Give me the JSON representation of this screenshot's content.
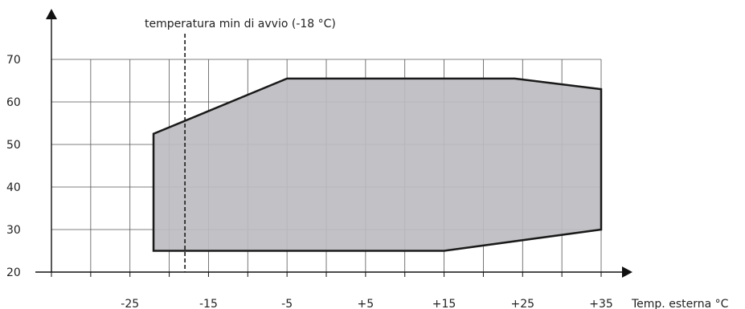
{
  "chart_data": {
    "type": "area",
    "xlabel": "Temp. esterna °C",
    "ylabel": "",
    "xlim": [
      -35,
      35
    ],
    "ylim": [
      20,
      70
    ],
    "x_gridlines": [
      -35,
      -30,
      -25,
      -20,
      -15,
      -10,
      -5,
      0,
      5,
      10,
      15,
      20,
      25,
      30,
      35
    ],
    "y_gridlines": [
      20,
      30,
      40,
      50,
      60,
      70
    ],
    "x_ticks": [
      {
        "value": -25,
        "label": "-25"
      },
      {
        "value": -15,
        "label": "-15"
      },
      {
        "value": -5,
        "label": "-5"
      },
      {
        "value": 5,
        "label": "+5"
      },
      {
        "value": 15,
        "label": "+15"
      },
      {
        "value": 25,
        "label": "+25"
      },
      {
        "value": 35,
        "label": "+35"
      }
    ],
    "y_ticks": [
      {
        "value": 20,
        "label": "20"
      },
      {
        "value": 30,
        "label": "30"
      },
      {
        "value": 40,
        "label": "40"
      },
      {
        "value": 50,
        "label": "50"
      },
      {
        "value": 60,
        "label": "60"
      },
      {
        "value": 70,
        "label": "70"
      }
    ],
    "operating_area": [
      [
        -22,
        25
      ],
      [
        -22,
        52.5
      ],
      [
        -5,
        65.5
      ],
      [
        24,
        65.5
      ],
      [
        35,
        63
      ],
      [
        35,
        30
      ],
      [
        15,
        25
      ]
    ],
    "reference_line": {
      "x": -18,
      "label": "temperatura min di avvio (-18 °C)"
    },
    "grid": true,
    "legend": "none",
    "fill_color": "#bdbdc1",
    "line_color": "#1a1a1a"
  }
}
